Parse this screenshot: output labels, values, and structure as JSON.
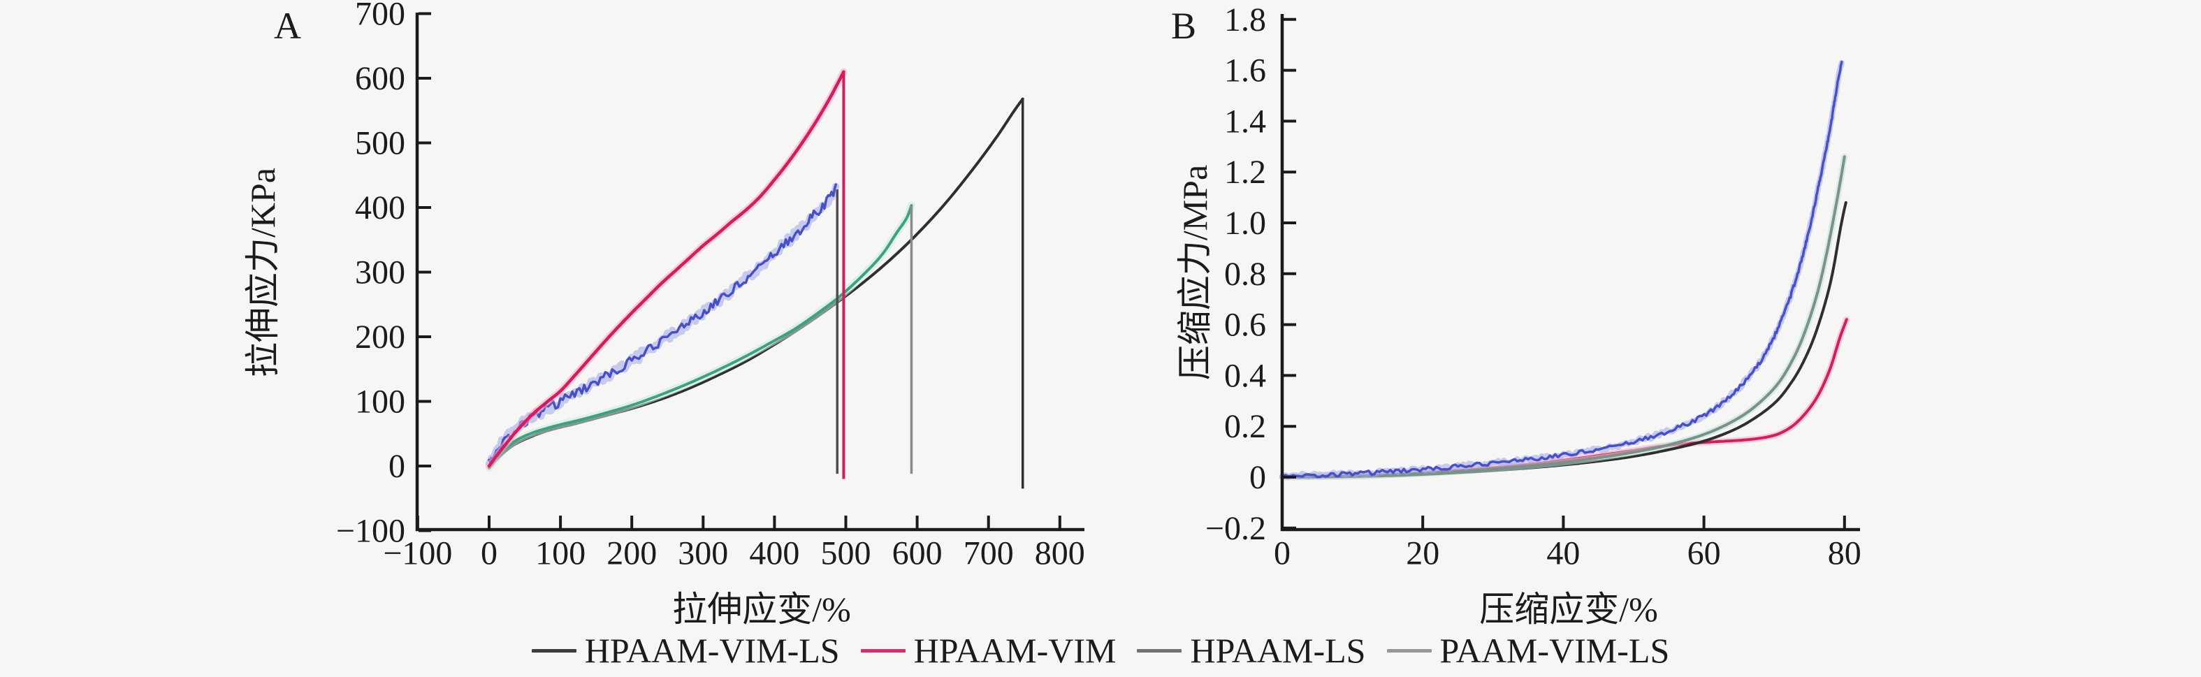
{
  "page": {
    "background": "#f6f6f4",
    "text_color": "#1b1b1b",
    "axis_color": "#1a1a1a"
  },
  "legend": {
    "items": [
      {
        "label": "HPAAM-VIM-LS",
        "color": "#3d3d3d"
      },
      {
        "label": "HPAAM-VIM",
        "color": "#dc2c69"
      },
      {
        "label": "HPAAM-LS",
        "color": "#6f7472"
      },
      {
        "label": "PAAM-VIM-LS",
        "color": "#97989a"
      }
    ]
  },
  "chart_data": [
    {
      "type": "line",
      "panel_label": "A",
      "xlabel": "拉伸应变/%",
      "ylabel": "拉伸应力/KPa",
      "xlim": [
        -100,
        800
      ],
      "ylim": [
        -100,
        700
      ],
      "grid": false,
      "xticks": [
        {
          "v": -100,
          "label": "−100"
        },
        {
          "v": 0,
          "label": "0"
        },
        {
          "v": 100,
          "label": "100"
        },
        {
          "v": 200,
          "label": "200"
        },
        {
          "v": 300,
          "label": "300"
        },
        {
          "v": 400,
          "label": "400"
        },
        {
          "v": 500,
          "label": "500"
        },
        {
          "v": 600,
          "label": "600"
        },
        {
          "v": 700,
          "label": "700"
        },
        {
          "v": 800,
          "label": "800"
        }
      ],
      "yticks": [
        {
          "v": -100,
          "label": "−100"
        },
        {
          "v": 0,
          "label": "0"
        },
        {
          "v": 100,
          "label": "100"
        },
        {
          "v": 200,
          "label": "200"
        },
        {
          "v": 300,
          "label": "300"
        },
        {
          "v": 400,
          "label": "400"
        },
        {
          "v": 500,
          "label": "500"
        },
        {
          "v": 600,
          "label": "600"
        },
        {
          "v": 700,
          "label": "700"
        }
      ],
      "series": [
        {
          "name": "HPAAM-VIM-LS",
          "color": "#2f2f2f",
          "width": 4,
          "points": [
            [
              0,
              -3
            ],
            [
              12,
              12
            ],
            [
              25,
              25
            ],
            [
              40,
              36
            ],
            [
              60,
              46
            ],
            [
              80,
              54
            ],
            [
              100,
              60
            ],
            [
              130,
              68
            ],
            [
              160,
              77
            ],
            [
              200,
              89
            ],
            [
              240,
              103
            ],
            [
              280,
              120
            ],
            [
              320,
              140
            ],
            [
              360,
              162
            ],
            [
              400,
              188
            ],
            [
              440,
              216
            ],
            [
              480,
              247
            ],
            [
              520,
              280
            ],
            [
              560,
              317
            ],
            [
              600,
              359
            ],
            [
              640,
              407
            ],
            [
              680,
              462
            ],
            [
              712,
              510
            ],
            [
              735,
              548
            ],
            [
              748,
              568
            ]
          ],
          "drop": {
            "x": 748,
            "top": 568,
            "bottom": -35,
            "color": "#2f2f2f",
            "width": 3.5
          }
        },
        {
          "name": "HPAAM-LS",
          "color": "#3da183",
          "width": 4,
          "halo": "#c9ecdf",
          "halo_width": 11,
          "points": [
            [
              0,
              -3
            ],
            [
              12,
              14
            ],
            [
              25,
              29
            ],
            [
              40,
              41
            ],
            [
              60,
              51
            ],
            [
              80,
              58
            ],
            [
              100,
              64
            ],
            [
              130,
              72
            ],
            [
              160,
              81
            ],
            [
              200,
              94
            ],
            [
              240,
              110
            ],
            [
              280,
              128
            ],
            [
              320,
              148
            ],
            [
              360,
              170
            ],
            [
              400,
              194
            ],
            [
              430,
              213
            ],
            [
              460,
              236
            ],
            [
              490,
              261
            ],
            [
              520,
              291
            ],
            [
              550,
              326
            ],
            [
              572,
              362
            ],
            [
              585,
              383
            ],
            [
              592,
              403
            ]
          ],
          "drop": {
            "x": 592,
            "top": 403,
            "bottom": -12,
            "color": "#8a8a8a",
            "width": 3.5
          }
        },
        {
          "name": "PAAM-VIM-LS",
          "color": "#4750c8",
          "width": 3.5,
          "halo": "#9fa7e8",
          "halo_width": 10,
          "noise": 7,
          "points": [
            [
              0,
              3
            ],
            [
              15,
              30
            ],
            [
              30,
              50
            ],
            [
              50,
              68
            ],
            [
              70,
              82
            ],
            [
              100,
              100
            ],
            [
              130,
              118
            ],
            [
              160,
              137
            ],
            [
              200,
              163
            ],
            [
              240,
              192
            ],
            [
              280,
              222
            ],
            [
              320,
              255
            ],
            [
              360,
              290
            ],
            [
              400,
              330
            ],
            [
              430,
              359
            ],
            [
              455,
              388
            ],
            [
              470,
              405
            ],
            [
              480,
              420
            ],
            [
              486,
              430
            ]
          ],
          "drop": {
            "x": 488,
            "top": 428,
            "bottom": -12,
            "color": "#4f4f4f",
            "width": 3.5
          }
        },
        {
          "name": "HPAAM-VIM",
          "color": "#d91a5e",
          "width": 4.5,
          "halo": "#f2afc8",
          "halo_width": 10,
          "points": [
            [
              0,
              0
            ],
            [
              12,
              18
            ],
            [
              25,
              36
            ],
            [
              40,
              56
            ],
            [
              60,
              79
            ],
            [
              80,
              98
            ],
            [
              100,
              116
            ],
            [
              120,
              140
            ],
            [
              140,
              165
            ],
            [
              160,
              190
            ],
            [
              180,
              214
            ],
            [
              200,
              237
            ],
            [
              220,
              259
            ],
            [
              240,
              281
            ],
            [
              260,
              301
            ],
            [
              280,
              321
            ],
            [
              300,
              341
            ],
            [
              320,
              359
            ],
            [
              340,
              378
            ],
            [
              360,
              396
            ],
            [
              380,
              417
            ],
            [
              400,
              443
            ],
            [
              420,
              471
            ],
            [
              440,
              502
            ],
            [
              460,
              536
            ],
            [
              478,
              570
            ],
            [
              490,
              595
            ],
            [
              497,
              610
            ]
          ],
          "drop": {
            "x": 497,
            "top": 610,
            "bottom": -20,
            "color": "#d91a5e",
            "width": 4
          }
        }
      ]
    },
    {
      "type": "line",
      "panel_label": "B",
      "xlabel": "压缩应变/%",
      "ylabel": "压缩应力/MPa",
      "xlim": [
        0,
        80
      ],
      "ylim": [
        -0.2,
        1.8
      ],
      "grid": false,
      "xticks": [
        {
          "v": 0,
          "label": "0"
        },
        {
          "v": 20,
          "label": "20"
        },
        {
          "v": 40,
          "label": "40"
        },
        {
          "v": 60,
          "label": "60"
        },
        {
          "v": 80,
          "label": "80"
        }
      ],
      "yticks": [
        {
          "v": -0.2,
          "label": "−0.2"
        },
        {
          "v": 0,
          "label": "0"
        },
        {
          "v": 0.2,
          "label": "0.2"
        },
        {
          "v": 0.4,
          "label": "0.4"
        },
        {
          "v": 0.6,
          "label": "0.6"
        },
        {
          "v": 0.8,
          "label": "0.8"
        },
        {
          "v": 1.0,
          "label": "1.0"
        },
        {
          "v": 1.2,
          "label": "1.2"
        },
        {
          "v": 1.4,
          "label": "1.4"
        },
        {
          "v": 1.6,
          "label": "1.6"
        },
        {
          "v": 1.8,
          "label": "1.8"
        }
      ],
      "series": [
        {
          "name": "HPAAM-VIM",
          "color": "#d91a5e",
          "width": 4,
          "halo": "#f2afc8",
          "halo_width": 9,
          "points": [
            [
              0,
              0
            ],
            [
              5,
              0.002
            ],
            [
              10,
              0.005
            ],
            [
              15,
              0.01
            ],
            [
              20,
              0.017
            ],
            [
              25,
              0.026
            ],
            [
              30,
              0.037
            ],
            [
              35,
              0.05
            ],
            [
              40,
              0.066
            ],
            [
              45,
              0.085
            ],
            [
              50,
              0.105
            ],
            [
              54,
              0.122
            ],
            [
              58,
              0.133
            ],
            [
              62,
              0.14
            ],
            [
              66,
              0.147
            ],
            [
              69,
              0.158
            ],
            [
              71,
              0.175
            ],
            [
              73,
              0.21
            ],
            [
              75,
              0.27
            ],
            [
              76.5,
              0.335
            ],
            [
              78,
              0.43
            ],
            [
              79.3,
              0.545
            ],
            [
              80.3,
              0.62
            ]
          ]
        },
        {
          "name": "HPAAM-VIM-LS",
          "color": "#2f2f2f",
          "width": 4,
          "points": [
            [
              0,
              0
            ],
            [
              5,
              0.001
            ],
            [
              10,
              0.003
            ],
            [
              15,
              0.006
            ],
            [
              20,
              0.011
            ],
            [
              25,
              0.018
            ],
            [
              30,
              0.026
            ],
            [
              35,
              0.036
            ],
            [
              40,
              0.048
            ],
            [
              45,
              0.063
            ],
            [
              50,
              0.082
            ],
            [
              55,
              0.108
            ],
            [
              60,
              0.142
            ],
            [
              64,
              0.183
            ],
            [
              67,
              0.228
            ],
            [
              70,
              0.29
            ],
            [
              72,
              0.355
            ],
            [
              74,
              0.445
            ],
            [
              76,
              0.575
            ],
            [
              78,
              0.765
            ],
            [
              79.5,
              0.99
            ],
            [
              80.2,
              1.08
            ]
          ]
        },
        {
          "name": "HPAAM-LS",
          "color": "#79938a",
          "width": 4,
          "halo": "#bfe3d4",
          "halo_width": 9,
          "points": [
            [
              0,
              0
            ],
            [
              5,
              0.002
            ],
            [
              10,
              0.004
            ],
            [
              15,
              0.008
            ],
            [
              20,
              0.014
            ],
            [
              25,
              0.022
            ],
            [
              30,
              0.032
            ],
            [
              35,
              0.044
            ],
            [
              40,
              0.058
            ],
            [
              45,
              0.076
            ],
            [
              50,
              0.098
            ],
            [
              55,
              0.127
            ],
            [
              60,
              0.168
            ],
            [
              64,
              0.218
            ],
            [
              67,
              0.272
            ],
            [
              70,
              0.35
            ],
            [
              72,
              0.43
            ],
            [
              74,
              0.545
            ],
            [
              76,
              0.71
            ],
            [
              77.5,
              0.885
            ],
            [
              79,
              1.1
            ],
            [
              80,
              1.26
            ]
          ]
        },
        {
          "name": "PAAM-VIM-LS",
          "color": "#4750c8",
          "width": 3.5,
          "halo": "#9fa7e8",
          "halo_width": 8,
          "noise": 0.008,
          "points": [
            [
              0,
              0.004
            ],
            [
              5,
              0.008
            ],
            [
              10,
              0.014
            ],
            [
              15,
              0.022
            ],
            [
              20,
              0.031
            ],
            [
              25,
              0.042
            ],
            [
              30,
              0.055
            ],
            [
              35,
              0.07
            ],
            [
              40,
              0.088
            ],
            [
              45,
              0.11
            ],
            [
              50,
              0.14
            ],
            [
              54,
              0.172
            ],
            [
              58,
              0.215
            ],
            [
              61,
              0.26
            ],
            [
              64,
              0.325
            ],
            [
              67,
              0.415
            ],
            [
              69,
              0.5
            ],
            [
              71,
              0.615
            ],
            [
              73,
              0.77
            ],
            [
              75,
              0.975
            ],
            [
              76.5,
              1.17
            ],
            [
              78,
              1.38
            ],
            [
              79,
              1.55
            ],
            [
              79.6,
              1.63
            ]
          ]
        }
      ]
    }
  ]
}
